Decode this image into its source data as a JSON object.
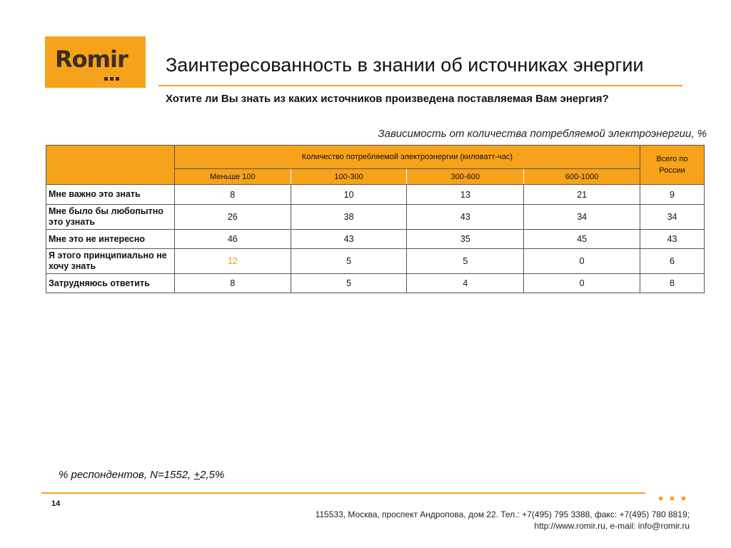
{
  "brand": {
    "logo_text": "Romir",
    "colors": {
      "accent": "#f7a21b",
      "logo_text": "#3a2e26",
      "highlight_value": "#f39c12"
    }
  },
  "page": {
    "title": "Заинтересованность в знании об источниках энергии",
    "question": "Хотите ли Вы знать из каких источников произведена поставляемая Вам энергия?",
    "table_caption": "Зависимость от количества потребляемой электроэнергии, %"
  },
  "table": {
    "group_header": "Количество потребляемой электроэнергии (киловатт-час)",
    "total_header": "Всего по России",
    "columns": [
      "Меньше 100",
      "100-300",
      "300-600",
      "600-1000"
    ],
    "rows": [
      {
        "label": "Мне важно это знать",
        "values": [
          "8",
          "10",
          "13",
          "21"
        ],
        "total": "9"
      },
      {
        "label": "Мне было бы любопытно это узнать",
        "values": [
          "26",
          "38",
          "43",
          "34"
        ],
        "total": "34"
      },
      {
        "label": "Мне это не интересно",
        "values": [
          "46",
          "43",
          "35",
          "45"
        ],
        "total": "43"
      },
      {
        "label": "Я этого принципиально не хочу знать",
        "values": [
          "12",
          "5",
          "5",
          "0"
        ],
        "total": "6"
      },
      {
        "label": "Затрудняюсь ответить",
        "values": [
          "8",
          "5",
          "4",
          "0"
        ],
        "total": "8"
      }
    ]
  },
  "footer": {
    "respondents_prefix": "% респондентов, N=1552, ",
    "respondents_plus": "+",
    "respondents_suffix": "2,5%",
    "page_number": "14",
    "address_line1": "115533, Москва, проспект Андропова, дом 22.   Тел.: +7(495) 795 3388, факс: +7(495) 780 8819;",
    "address_line2": "http://www.romir.ru, e-mail: info@romir.ru"
  }
}
